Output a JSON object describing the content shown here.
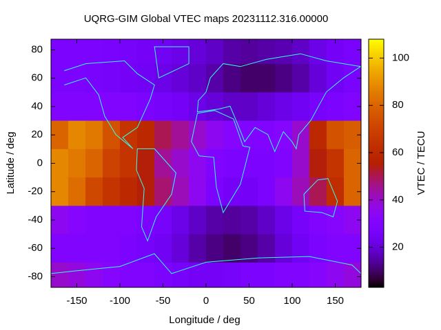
{
  "chart_data": {
    "type": "heatmap",
    "title": "UQRG-GIM Global VTEC maps 20231112.316.00000",
    "x_label": "Longitude / deg",
    "y_label": "Latitude / deg",
    "colorbar_label": "VTEC / TECU",
    "palette": "rgbformulae 7,5,15",
    "x": [
      -170,
      -150,
      -130,
      -110,
      -90,
      -70,
      -50,
      -30,
      -10,
      10,
      30,
      50,
      70,
      90,
      110,
      130,
      150,
      170
    ],
    "y": [
      80,
      60,
      40,
      20,
      0,
      -20,
      -40,
      -60,
      -80
    ],
    "z": [
      [
        28,
        28,
        28,
        27,
        26,
        25,
        24,
        22,
        20,
        18,
        15,
        14,
        15,
        16,
        18,
        22,
        25,
        27
      ],
      [
        28,
        28,
        27,
        26,
        25,
        24,
        22,
        20,
        18,
        15,
        12,
        10,
        10,
        12,
        15,
        20,
        24,
        27
      ],
      [
        30,
        30,
        30,
        30,
        30,
        28,
        26,
        25,
        22,
        20,
        18,
        18,
        20,
        22,
        24,
        26,
        28,
        30
      ],
      [
        80,
        88,
        85,
        75,
        65,
        60,
        50,
        45,
        40,
        35,
        32,
        30,
        30,
        32,
        40,
        60,
        75,
        78
      ],
      [
        88,
        85,
        80,
        70,
        65,
        55,
        45,
        40,
        35,
        30,
        28,
        28,
        28,
        30,
        40,
        55,
        65,
        80
      ],
      [
        88,
        82,
        72,
        65,
        60,
        55,
        48,
        42,
        35,
        28,
        25,
        25,
        28,
        35,
        42,
        50,
        62,
        80
      ],
      [
        35,
        32,
        30,
        30,
        30,
        28,
        26,
        22,
        18,
        15,
        14,
        15,
        18,
        22,
        26,
        30,
        32,
        35
      ],
      [
        30,
        30,
        30,
        30,
        28,
        26,
        24,
        20,
        15,
        12,
        10,
        12,
        15,
        20,
        24,
        28,
        30,
        30
      ],
      [
        40,
        38,
        35,
        32,
        30,
        30,
        28,
        26,
        25,
        25,
        26,
        28,
        28,
        30,
        30,
        32,
        35,
        38
      ]
    ],
    "xlim": [
      -180,
      180
    ],
    "ylim": [
      -87.5,
      87.5
    ],
    "xticks": [
      -150,
      -100,
      -50,
      0,
      50,
      100,
      150
    ],
    "yticks": [
      -80,
      -60,
      -40,
      -20,
      0,
      20,
      40,
      60,
      80
    ],
    "cblim": [
      3,
      108
    ],
    "cbticks": [
      20,
      40,
      60,
      80,
      100
    ]
  }
}
